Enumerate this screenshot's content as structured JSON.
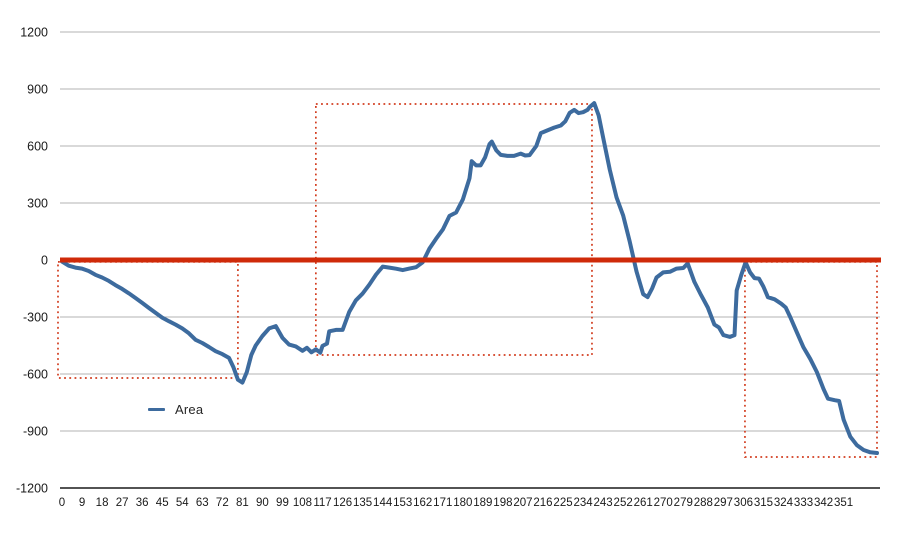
{
  "legend": {
    "label": "Area"
  },
  "colors": {
    "series": "#3d6b9e",
    "baseline": "#cf2a09",
    "annotation": "#d23c1e",
    "gridline": "#b3b3b3",
    "axis_line": "#1a1a1a",
    "tick_text": "#1a1a1a"
  },
  "chart_data": {
    "type": "line",
    "title": "",
    "xlabel": "",
    "ylabel": "",
    "grid": true,
    "legend_position": "inside-bottom-left",
    "yaxis": {
      "min": -1200,
      "max": 1200,
      "step": 300,
      "ticks": [
        1200,
        900,
        600,
        300,
        0,
        -300,
        -600,
        -900,
        -1200
      ],
      "tick_labels": [
        "1200",
        "900",
        "600",
        "300",
        "0",
        "-300",
        "-600",
        "-900",
        "-1200"
      ]
    },
    "xaxis": {
      "min": 0,
      "max": 366,
      "label_step": 9,
      "tick_values": [
        0,
        9,
        18,
        27,
        36,
        45,
        54,
        63,
        72,
        81,
        90,
        99,
        108,
        117,
        126,
        135,
        144,
        153,
        162,
        171,
        180,
        189,
        198,
        207,
        216,
        225,
        234,
        243,
        252,
        261,
        270,
        279,
        288,
        297,
        306,
        315,
        324,
        333,
        342,
        351
      ],
      "tick_labels": [
        "0",
        "9",
        "18",
        "27",
        "36",
        "45",
        "54",
        "63",
        "72",
        "81",
        "90",
        "99",
        "108",
        "117",
        "126",
        "135",
        "144",
        "153",
        "162",
        "171",
        "180",
        "189",
        "198",
        "207",
        "216",
        "225",
        "234",
        "243",
        "252",
        "261",
        "270",
        "279",
        "288",
        "297",
        "306",
        "315",
        "324",
        "333",
        "342",
        "351"
      ]
    },
    "baseline": {
      "value": 0
    },
    "series": [
      {
        "name": "Area",
        "points": [
          [
            0,
            -8
          ],
          [
            3,
            -30
          ],
          [
            6,
            -40
          ],
          [
            9,
            -45
          ],
          [
            12,
            -58
          ],
          [
            15,
            -78
          ],
          [
            18,
            -92
          ],
          [
            21,
            -110
          ],
          [
            24,
            -132
          ],
          [
            27,
            -152
          ],
          [
            30,
            -175
          ],
          [
            33,
            -200
          ],
          [
            36,
            -226
          ],
          [
            39,
            -252
          ],
          [
            42,
            -278
          ],
          [
            45,
            -303
          ],
          [
            48,
            -322
          ],
          [
            51,
            -340
          ],
          [
            54,
            -360
          ],
          [
            57,
            -386
          ],
          [
            60,
            -420
          ],
          [
            63,
            -437
          ],
          [
            66,
            -458
          ],
          [
            69,
            -480
          ],
          [
            72,
            -495
          ],
          [
            75,
            -515
          ],
          [
            77,
            -565
          ],
          [
            79,
            -630
          ],
          [
            81,
            -645
          ],
          [
            83,
            -590
          ],
          [
            85,
            -500
          ],
          [
            87,
            -450
          ],
          [
            90,
            -400
          ],
          [
            93,
            -360
          ],
          [
            96,
            -348
          ],
          [
            99,
            -410
          ],
          [
            102,
            -445
          ],
          [
            105,
            -455
          ],
          [
            108,
            -478
          ],
          [
            110,
            -462
          ],
          [
            112,
            -486
          ],
          [
            114,
            -470
          ],
          [
            116,
            -488
          ],
          [
            117,
            -452
          ],
          [
            119,
            -440
          ],
          [
            120,
            -375
          ],
          [
            123,
            -368
          ],
          [
            126,
            -368
          ],
          [
            129,
            -272
          ],
          [
            132,
            -212
          ],
          [
            135,
            -177
          ],
          [
            138,
            -130
          ],
          [
            141,
            -77
          ],
          [
            144,
            -35
          ],
          [
            147,
            -40
          ],
          [
            150,
            -46
          ],
          [
            153,
            -53
          ],
          [
            156,
            -45
          ],
          [
            159,
            -38
          ],
          [
            162,
            -12
          ],
          [
            165,
            60
          ],
          [
            168,
            112
          ],
          [
            171,
            160
          ],
          [
            174,
            232
          ],
          [
            177,
            250
          ],
          [
            180,
            318
          ],
          [
            183,
            430
          ],
          [
            184,
            520
          ],
          [
            186,
            498
          ],
          [
            188,
            498
          ],
          [
            190,
            540
          ],
          [
            192,
            610
          ],
          [
            193,
            623
          ],
          [
            195,
            578
          ],
          [
            197,
            553
          ],
          [
            200,
            548
          ],
          [
            203,
            548
          ],
          [
            206,
            560
          ],
          [
            208,
            550
          ],
          [
            210,
            552
          ],
          [
            213,
            600
          ],
          [
            215,
            668
          ],
          [
            218,
            682
          ],
          [
            221,
            697
          ],
          [
            224,
            708
          ],
          [
            226,
            730
          ],
          [
            228,
            775
          ],
          [
            230,
            790
          ],
          [
            232,
            773
          ],
          [
            234,
            778
          ],
          [
            236,
            790
          ],
          [
            237,
            805
          ],
          [
            239,
            826
          ],
          [
            241,
            760
          ],
          [
            243,
            645
          ],
          [
            246,
            475
          ],
          [
            249,
            330
          ],
          [
            252,
            235
          ],
          [
            255,
            95
          ],
          [
            258,
            -60
          ],
          [
            261,
            -180
          ],
          [
            263,
            -195
          ],
          [
            265,
            -150
          ],
          [
            267,
            -92
          ],
          [
            270,
            -65
          ],
          [
            273,
            -62
          ],
          [
            276,
            -45
          ],
          [
            279,
            -42
          ],
          [
            281,
            -18
          ],
          [
            284,
            -115
          ],
          [
            287,
            -185
          ],
          [
            290,
            -250
          ],
          [
            293,
            -340
          ],
          [
            295,
            -355
          ],
          [
            297,
            -395
          ],
          [
            300,
            -405
          ],
          [
            302,
            -395
          ],
          [
            303,
            -160
          ],
          [
            305,
            -80
          ],
          [
            307,
            -12
          ],
          [
            309,
            -65
          ],
          [
            311,
            -95
          ],
          [
            313,
            -98
          ],
          [
            315,
            -140
          ],
          [
            317,
            -196
          ],
          [
            320,
            -207
          ],
          [
            323,
            -230
          ],
          [
            325,
            -250
          ],
          [
            327,
            -300
          ],
          [
            330,
            -380
          ],
          [
            333,
            -460
          ],
          [
            336,
            -520
          ],
          [
            339,
            -590
          ],
          [
            342,
            -680
          ],
          [
            344,
            -730
          ],
          [
            347,
            -738
          ],
          [
            349,
            -742
          ],
          [
            351,
            -840
          ],
          [
            354,
            -930
          ],
          [
            357,
            -975
          ],
          [
            360,
            -1000
          ],
          [
            363,
            -1012
          ],
          [
            366,
            -1016
          ]
        ]
      }
    ],
    "annotations": [
      {
        "type": "box",
        "x1": -1.8,
        "x2": 79.0,
        "y1": -10,
        "y2": -621
      },
      {
        "type": "box",
        "x1": 114.0,
        "x2": 238.0,
        "y1": 821,
        "y2": -500
      },
      {
        "type": "box",
        "x1": 306.7,
        "x2": 366.0,
        "y1": -10,
        "y2": -1037
      }
    ]
  }
}
